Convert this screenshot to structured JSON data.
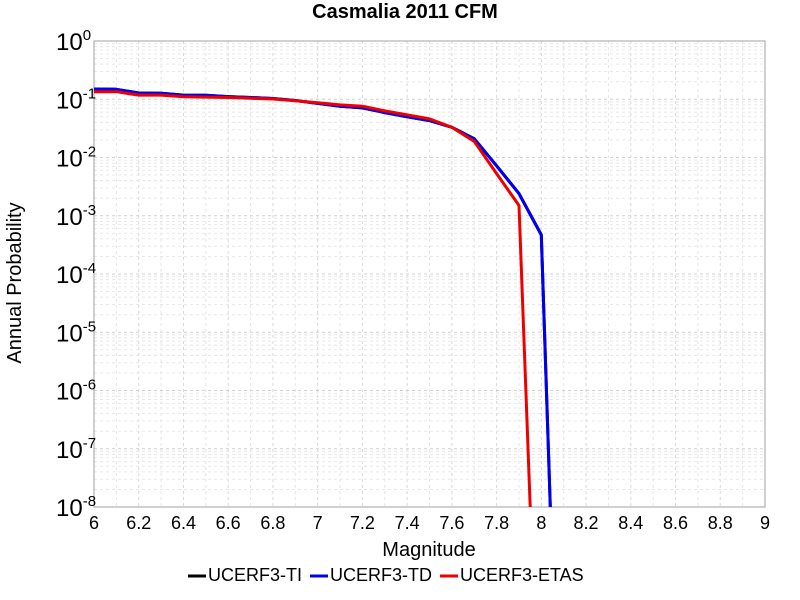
{
  "chart_data": {
    "type": "line",
    "title": "Casmalia 2011 CFM",
    "xlabel": "Magnitude",
    "ylabel": "Annual Probability",
    "xlim": [
      6,
      9
    ],
    "ylim": [
      1e-08,
      1
    ],
    "y_scale": "log",
    "grid": true,
    "legend_placement": "bottom-center",
    "x_ticks": [
      "6",
      "6.2",
      "6.4",
      "6.6",
      "6.8",
      "7",
      "7.2",
      "7.4",
      "7.6",
      "7.8",
      "8",
      "8.2",
      "8.4",
      "8.6",
      "8.8",
      "9"
    ],
    "y_ticks": [
      {
        "base": "10",
        "exp": "0",
        "value": 1
      },
      {
        "base": "10",
        "exp": "-1",
        "value": 0.1
      },
      {
        "base": "10",
        "exp": "-2",
        "value": 0.01
      },
      {
        "base": "10",
        "exp": "-3",
        "value": 0.001
      },
      {
        "base": "10",
        "exp": "-4",
        "value": 0.0001
      },
      {
        "base": "10",
        "exp": "-5",
        "value": 1e-05
      },
      {
        "base": "10",
        "exp": "-6",
        "value": 1e-06
      },
      {
        "base": "10",
        "exp": "-7",
        "value": 1e-07
      },
      {
        "base": "10",
        "exp": "-8",
        "value": 1e-08
      }
    ],
    "series": [
      {
        "name": "UCERF3-TI",
        "color": "#000000",
        "x": [
          6.0,
          6.1,
          6.2,
          6.3,
          6.4,
          6.5,
          6.6,
          6.7,
          6.8,
          6.9,
          7.0,
          7.1,
          7.2,
          7.3,
          7.4,
          7.5,
          7.6,
          7.7,
          7.8,
          7.9,
          8.0,
          8.04
        ],
        "y": [
          0.15,
          0.148,
          0.128,
          0.127,
          0.118,
          0.117,
          0.111,
          0.107,
          0.103,
          0.095,
          0.085,
          0.076,
          0.071,
          0.059,
          0.05,
          0.043,
          0.033,
          0.021,
          0.0072,
          0.0024,
          0.00047,
          1e-08
        ]
      },
      {
        "name": "UCERF3-TD",
        "color": "#0000ee",
        "x": [
          6.0,
          6.1,
          6.2,
          6.3,
          6.4,
          6.5,
          6.6,
          6.7,
          6.8,
          6.9,
          7.0,
          7.1,
          7.2,
          7.3,
          7.4,
          7.5,
          7.6,
          7.7,
          7.8,
          7.9,
          8.0,
          8.04
        ],
        "y": [
          0.15,
          0.148,
          0.128,
          0.127,
          0.118,
          0.117,
          0.111,
          0.107,
          0.103,
          0.095,
          0.085,
          0.076,
          0.071,
          0.059,
          0.05,
          0.043,
          0.033,
          0.021,
          0.0072,
          0.0024,
          0.00047,
          1e-08
        ]
      },
      {
        "name": "UCERF3-ETAS",
        "color": "#ee0000",
        "x": [
          6.0,
          6.1,
          6.2,
          6.3,
          6.4,
          6.5,
          6.6,
          6.7,
          6.8,
          6.9,
          7.0,
          7.1,
          7.2,
          7.3,
          7.4,
          7.5,
          7.6,
          7.7,
          7.8,
          7.9,
          7.95
        ],
        "y": [
          0.135,
          0.135,
          0.118,
          0.118,
          0.11,
          0.109,
          0.107,
          0.104,
          0.101,
          0.094,
          0.087,
          0.08,
          0.076,
          0.063,
          0.054,
          0.046,
          0.033,
          0.019,
          0.0053,
          0.0015,
          1e-08
        ]
      }
    ]
  }
}
